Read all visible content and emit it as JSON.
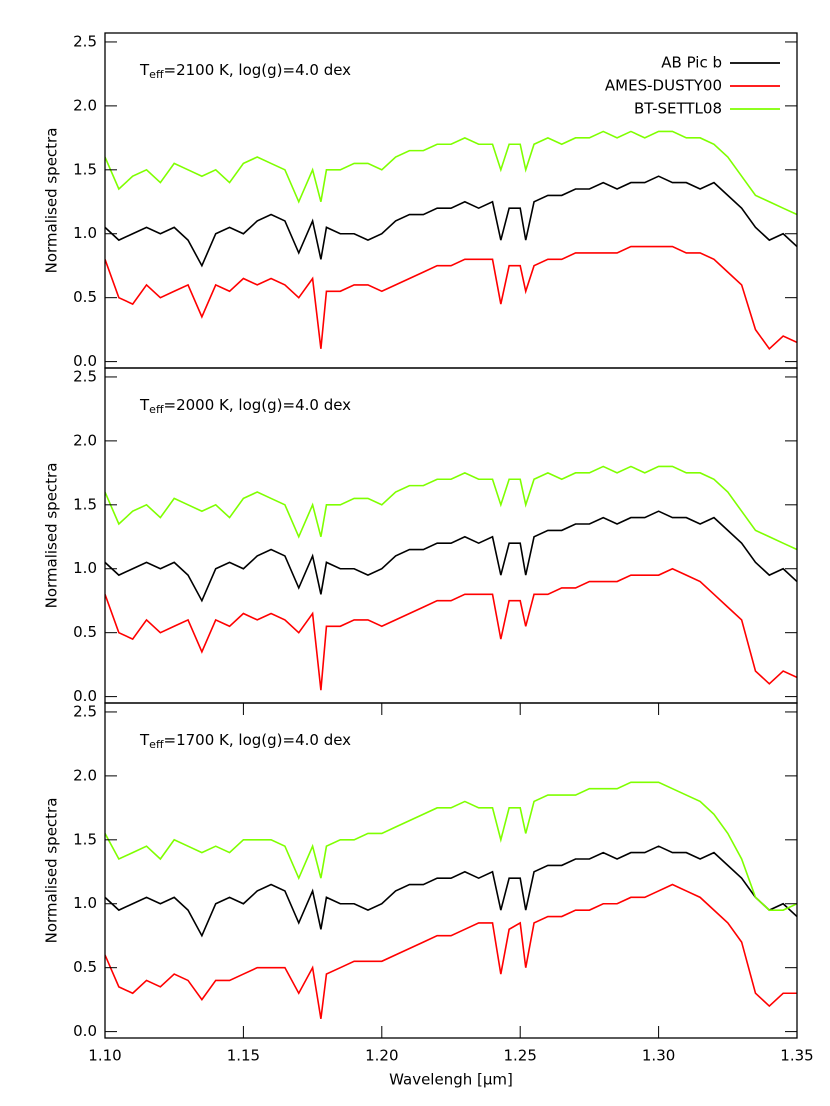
{
  "chart_data": [
    {
      "type": "line",
      "annotation": {
        "main": "T",
        "sub": "eff",
        "rest": "=2100 K, log(g)=4.0 dex"
      },
      "y_label": "Normalised spectra",
      "legend": "upper right",
      "x": [
        1.1,
        1.105,
        1.11,
        1.115,
        1.12,
        1.125,
        1.13,
        1.135,
        1.14,
        1.145,
        1.15,
        1.155,
        1.16,
        1.165,
        1.17,
        1.175,
        1.178,
        1.18,
        1.185,
        1.19,
        1.195,
        1.2,
        1.205,
        1.21,
        1.215,
        1.22,
        1.225,
        1.23,
        1.235,
        1.24,
        1.243,
        1.246,
        1.25,
        1.252,
        1.255,
        1.26,
        1.265,
        1.27,
        1.275,
        1.28,
        1.285,
        1.29,
        1.295,
        1.3,
        1.305,
        1.31,
        1.315,
        1.32,
        1.325,
        1.33,
        1.335,
        1.34,
        1.345,
        1.35
      ],
      "series": [
        {
          "name": "AB Pic b",
          "color": "#000000",
          "values": [
            1.05,
            0.95,
            1.0,
            1.05,
            1.0,
            1.05,
            0.95,
            0.75,
            1.0,
            1.05,
            1.0,
            1.1,
            1.15,
            1.1,
            0.85,
            1.1,
            0.8,
            1.05,
            1.0,
            1.0,
            0.95,
            1.0,
            1.1,
            1.15,
            1.15,
            1.2,
            1.2,
            1.25,
            1.2,
            1.25,
            0.95,
            1.2,
            1.2,
            0.95,
            1.25,
            1.3,
            1.3,
            1.35,
            1.35,
            1.4,
            1.35,
            1.4,
            1.4,
            1.45,
            1.4,
            1.4,
            1.35,
            1.4,
            1.3,
            1.2,
            1.05,
            0.95,
            1.0,
            0.9
          ]
        },
        {
          "name": "AMES-DUSTY00",
          "color": "#ff0000",
          "values": [
            0.8,
            0.5,
            0.45,
            0.6,
            0.5,
            0.55,
            0.6,
            0.35,
            0.6,
            0.55,
            0.65,
            0.6,
            0.65,
            0.6,
            0.5,
            0.65,
            0.1,
            0.55,
            0.55,
            0.6,
            0.6,
            0.55,
            0.6,
            0.65,
            0.7,
            0.75,
            0.75,
            0.8,
            0.8,
            0.8,
            0.45,
            0.75,
            0.75,
            0.55,
            0.75,
            0.8,
            0.8,
            0.85,
            0.85,
            0.85,
            0.85,
            0.9,
            0.9,
            0.9,
            0.9,
            0.85,
            0.85,
            0.8,
            0.7,
            0.6,
            0.25,
            0.1,
            0.2,
            0.15
          ]
        },
        {
          "name": "BT-SETTL08",
          "color": "#7fff00",
          "values": [
            1.6,
            1.35,
            1.45,
            1.5,
            1.4,
            1.55,
            1.5,
            1.45,
            1.5,
            1.4,
            1.55,
            1.6,
            1.55,
            1.5,
            1.25,
            1.5,
            1.25,
            1.5,
            1.5,
            1.55,
            1.55,
            1.5,
            1.6,
            1.65,
            1.65,
            1.7,
            1.7,
            1.75,
            1.7,
            1.7,
            1.5,
            1.7,
            1.7,
            1.5,
            1.7,
            1.75,
            1.7,
            1.75,
            1.75,
            1.8,
            1.75,
            1.8,
            1.75,
            1.8,
            1.8,
            1.75,
            1.75,
            1.7,
            1.6,
            1.45,
            1.3,
            1.25,
            1.2,
            1.15
          ]
        }
      ],
      "xlim": [
        1.1,
        1.35
      ],
      "ylim": [
        -0.05,
        2.57
      ],
      "yticks": [
        {
          "value": 0,
          "label": "0.0"
        },
        0.5,
        {
          "value": 1,
          "label": "1.0"
        },
        1.5,
        {
          "value": 2,
          "label": "2.0"
        },
        2.5
      ]
    },
    {
      "type": "line",
      "annotation": {
        "main": "T",
        "sub": "eff",
        "rest": "=2000 K, log(g)=4.0 dex"
      },
      "y_label": "Normalised spectra",
      "x": [
        1.1,
        1.105,
        1.11,
        1.115,
        1.12,
        1.125,
        1.13,
        1.135,
        1.14,
        1.145,
        1.15,
        1.155,
        1.16,
        1.165,
        1.17,
        1.175,
        1.178,
        1.18,
        1.185,
        1.19,
        1.195,
        1.2,
        1.205,
        1.21,
        1.215,
        1.22,
        1.225,
        1.23,
        1.235,
        1.24,
        1.243,
        1.246,
        1.25,
        1.252,
        1.255,
        1.26,
        1.265,
        1.27,
        1.275,
        1.28,
        1.285,
        1.29,
        1.295,
        1.3,
        1.305,
        1.31,
        1.315,
        1.32,
        1.325,
        1.33,
        1.335,
        1.34,
        1.345,
        1.35
      ],
      "series": [
        {
          "color": "#000000",
          "values": [
            1.05,
            0.95,
            1.0,
            1.05,
            1.0,
            1.05,
            0.95,
            0.75,
            1.0,
            1.05,
            1.0,
            1.1,
            1.15,
            1.1,
            0.85,
            1.1,
            0.8,
            1.05,
            1.0,
            1.0,
            0.95,
            1.0,
            1.1,
            1.15,
            1.15,
            1.2,
            1.2,
            1.25,
            1.2,
            1.25,
            0.95,
            1.2,
            1.2,
            0.95,
            1.25,
            1.3,
            1.3,
            1.35,
            1.35,
            1.4,
            1.35,
            1.4,
            1.4,
            1.45,
            1.4,
            1.4,
            1.35,
            1.4,
            1.3,
            1.2,
            1.05,
            0.95,
            1.0,
            0.9
          ]
        },
        {
          "color": "#ff0000",
          "values": [
            0.8,
            0.5,
            0.45,
            0.6,
            0.5,
            0.55,
            0.6,
            0.35,
            0.6,
            0.55,
            0.65,
            0.6,
            0.65,
            0.6,
            0.5,
            0.65,
            0.05,
            0.55,
            0.55,
            0.6,
            0.6,
            0.55,
            0.6,
            0.65,
            0.7,
            0.75,
            0.75,
            0.8,
            0.8,
            0.8,
            0.45,
            0.75,
            0.75,
            0.55,
            0.8,
            0.8,
            0.85,
            0.85,
            0.9,
            0.9,
            0.9,
            0.95,
            0.95,
            0.95,
            1.0,
            0.95,
            0.9,
            0.8,
            0.7,
            0.6,
            0.2,
            0.1,
            0.2,
            0.15
          ]
        },
        {
          "color": "#7fff00",
          "values": [
            1.6,
            1.35,
            1.45,
            1.5,
            1.4,
            1.55,
            1.5,
            1.45,
            1.5,
            1.4,
            1.55,
            1.6,
            1.55,
            1.5,
            1.25,
            1.5,
            1.25,
            1.5,
            1.5,
            1.55,
            1.55,
            1.5,
            1.6,
            1.65,
            1.65,
            1.7,
            1.7,
            1.75,
            1.7,
            1.7,
            1.5,
            1.7,
            1.7,
            1.5,
            1.7,
            1.75,
            1.7,
            1.75,
            1.75,
            1.8,
            1.75,
            1.8,
            1.75,
            1.8,
            1.8,
            1.75,
            1.75,
            1.7,
            1.6,
            1.45,
            1.3,
            1.25,
            1.2,
            1.15
          ]
        }
      ],
      "xlim": [
        1.1,
        1.35
      ],
      "ylim": [
        -0.05,
        2.57
      ],
      "yticks": [
        {
          "value": 0,
          "label": "0.0"
        },
        0.5,
        {
          "value": 1,
          "label": "1.0"
        },
        1.5,
        {
          "value": 2,
          "label": "2.0"
        },
        2.5
      ]
    },
    {
      "type": "line",
      "annotation": {
        "main": "T",
        "sub": "eff",
        "rest": "=1700 K, log(g)=4.0 dex"
      },
      "y_label": "Normalised spectra",
      "x_label": "Wavelengh [μm]",
      "x": [
        1.1,
        1.105,
        1.11,
        1.115,
        1.12,
        1.125,
        1.13,
        1.135,
        1.14,
        1.145,
        1.15,
        1.155,
        1.16,
        1.165,
        1.17,
        1.175,
        1.178,
        1.18,
        1.185,
        1.19,
        1.195,
        1.2,
        1.205,
        1.21,
        1.215,
        1.22,
        1.225,
        1.23,
        1.235,
        1.24,
        1.243,
        1.246,
        1.25,
        1.252,
        1.255,
        1.26,
        1.265,
        1.27,
        1.275,
        1.28,
        1.285,
        1.29,
        1.295,
        1.3,
        1.305,
        1.31,
        1.315,
        1.32,
        1.325,
        1.33,
        1.335,
        1.34,
        1.345,
        1.35
      ],
      "series": [
        {
          "color": "#000000",
          "values": [
            1.05,
            0.95,
            1.0,
            1.05,
            1.0,
            1.05,
            0.95,
            0.75,
            1.0,
            1.05,
            1.0,
            1.1,
            1.15,
            1.1,
            0.85,
            1.1,
            0.8,
            1.05,
            1.0,
            1.0,
            0.95,
            1.0,
            1.1,
            1.15,
            1.15,
            1.2,
            1.2,
            1.25,
            1.2,
            1.25,
            0.95,
            1.2,
            1.2,
            0.95,
            1.25,
            1.3,
            1.3,
            1.35,
            1.35,
            1.4,
            1.35,
            1.4,
            1.4,
            1.45,
            1.4,
            1.4,
            1.35,
            1.4,
            1.3,
            1.2,
            1.05,
            0.95,
            1.0,
            0.9
          ]
        },
        {
          "color": "#ff0000",
          "values": [
            0.6,
            0.35,
            0.3,
            0.4,
            0.35,
            0.45,
            0.4,
            0.25,
            0.4,
            0.4,
            0.45,
            0.5,
            0.5,
            0.5,
            0.3,
            0.5,
            0.1,
            0.45,
            0.5,
            0.55,
            0.55,
            0.55,
            0.6,
            0.65,
            0.7,
            0.75,
            0.75,
            0.8,
            0.85,
            0.85,
            0.45,
            0.8,
            0.85,
            0.5,
            0.85,
            0.9,
            0.9,
            0.95,
            0.95,
            1.0,
            1.0,
            1.05,
            1.05,
            1.1,
            1.15,
            1.1,
            1.05,
            0.95,
            0.85,
            0.7,
            0.3,
            0.2,
            0.3,
            0.3
          ]
        },
        {
          "color": "#7fff00",
          "values": [
            1.55,
            1.35,
            1.4,
            1.45,
            1.35,
            1.5,
            1.45,
            1.4,
            1.45,
            1.4,
            1.5,
            1.5,
            1.5,
            1.45,
            1.2,
            1.45,
            1.2,
            1.45,
            1.5,
            1.5,
            1.55,
            1.55,
            1.6,
            1.65,
            1.7,
            1.75,
            1.75,
            1.8,
            1.75,
            1.75,
            1.5,
            1.75,
            1.75,
            1.55,
            1.8,
            1.85,
            1.85,
            1.85,
            1.9,
            1.9,
            1.9,
            1.95,
            1.95,
            1.95,
            1.9,
            1.85,
            1.8,
            1.7,
            1.55,
            1.35,
            1.05,
            0.95,
            0.95,
            1.0
          ]
        }
      ],
      "xlim": [
        1.1,
        1.35
      ],
      "ylim": [
        -0.05,
        2.57
      ],
      "yticks": [
        {
          "value": 0,
          "label": "0.0"
        },
        0.5,
        {
          "value": 1,
          "label": "1.0"
        },
        1.5,
        {
          "value": 2,
          "label": "2.0"
        },
        2.5
      ],
      "xticks": [
        {
          "value": 1.1,
          "label": "1.10"
        },
        1.15,
        {
          "value": 1.2,
          "label": "1.20"
        },
        1.25,
        {
          "value": 1.3,
          "label": "1.30"
        },
        1.35
      ]
    }
  ]
}
